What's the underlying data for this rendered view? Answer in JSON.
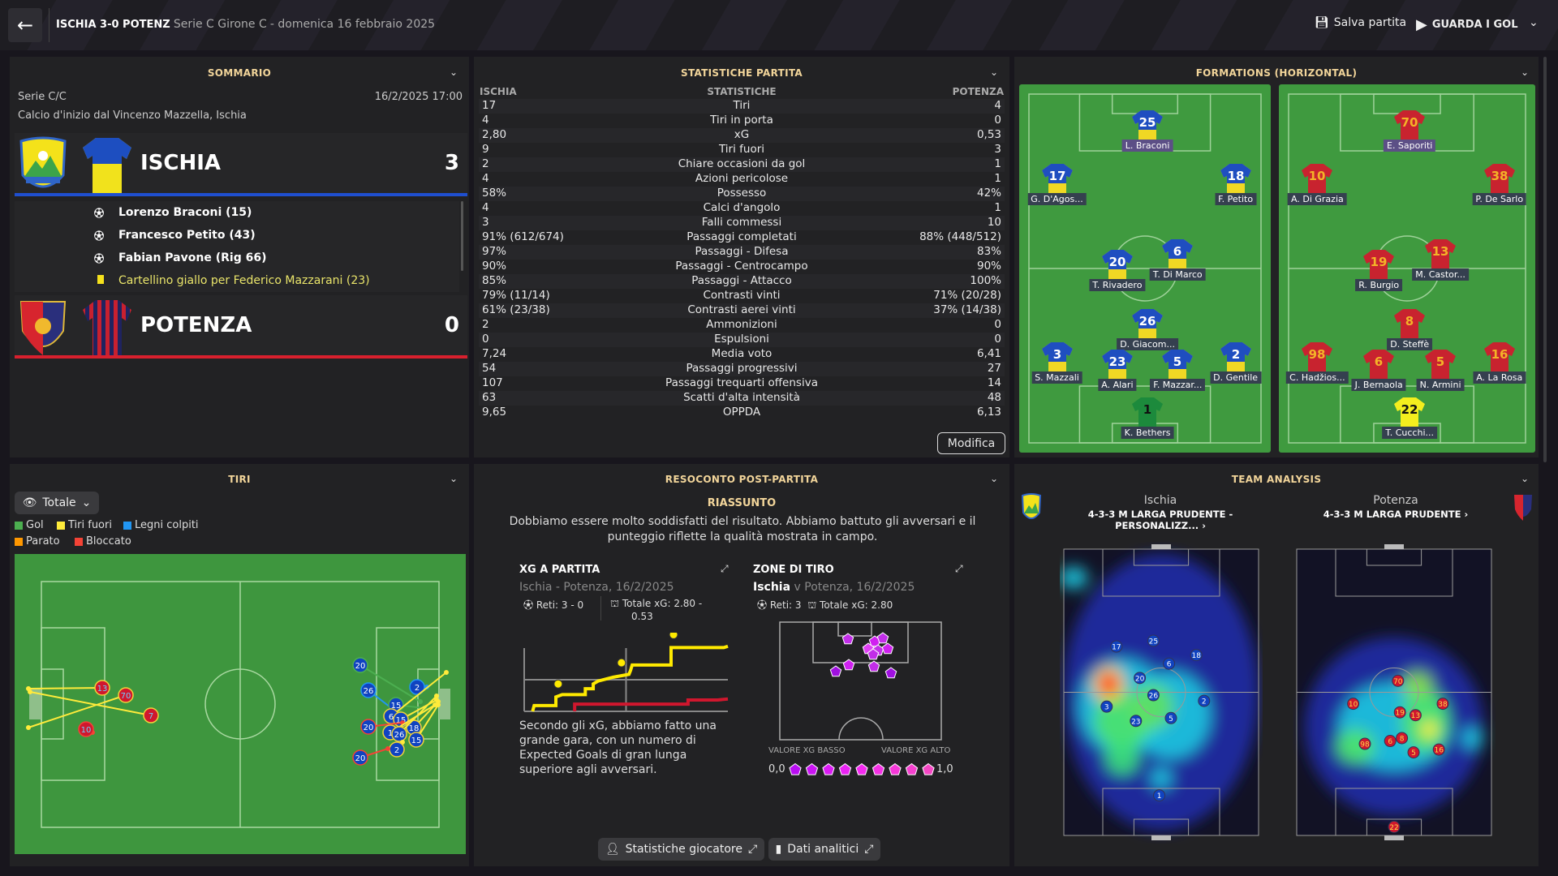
{
  "topbar": {
    "match": "ISCHIA 3-0 POTENZ",
    "competition": "Serie C Girone C",
    "date": "- domenica 16 febbraio 2025",
    "save": "Salva partita",
    "watch": "GUARDA I GOL"
  },
  "summary": {
    "title": "SOMMARIO",
    "league": "Serie C/C",
    "datetime": "16/2/2025 17:00",
    "kickoff": "Calcio d'inizio dal Vincenzo Mazzella, Ischia",
    "home": {
      "name": "ISCHIA",
      "score": "3",
      "color": "#1f4fd0"
    },
    "away": {
      "name": "POTENZA",
      "score": "0",
      "color": "#d8202e"
    },
    "events": [
      {
        "icon": "ball",
        "text": "Lorenzo Braconi (15)"
      },
      {
        "icon": "ball",
        "text": "Francesco Petito (43)"
      },
      {
        "icon": "ball",
        "text": "Fabian Pavone (Rig 66)"
      },
      {
        "icon": "yellow-card",
        "text": "Cartellino giallo per Federico Mazzarani (23)"
      }
    ]
  },
  "stats": {
    "title": "STATISTICHE PARTITA",
    "head": [
      "ISCHIA",
      "STATISTICHE",
      "POTENZA"
    ],
    "edit": "Modifica",
    "rows": [
      [
        "17",
        "Tiri",
        "4"
      ],
      [
        "4",
        "Tiri in porta",
        "0"
      ],
      [
        "2,80",
        "xG",
        "0,53"
      ],
      [
        "9",
        "Tiri fuori",
        "3"
      ],
      [
        "2",
        "Chiare occasioni da gol",
        "1"
      ],
      [
        "4",
        "Azioni pericolose",
        "1"
      ],
      [
        "58%",
        "Possesso",
        "42%"
      ],
      [
        "4",
        "Calci d'angolo",
        "1"
      ],
      [
        "3",
        "Falli commessi",
        "10"
      ],
      [
        "91% (612/674)",
        "Passaggi completati",
        "88% (448/512)"
      ],
      [
        "97%",
        "Passaggi - Difesa",
        "83%"
      ],
      [
        "90%",
        "Passaggi - Centrocampo",
        "90%"
      ],
      [
        "85%",
        "Passaggi - Attacco",
        "100%"
      ],
      [
        "79% (11/14)",
        "Contrasti vinti",
        "71% (20/28)"
      ],
      [
        "61% (23/38)",
        "Contrasti aerei vinti",
        "37% (14/38)"
      ],
      [
        "2",
        "Ammonizioni",
        "0"
      ],
      [
        "0",
        "Espulsioni",
        "0"
      ],
      [
        "7,24",
        "Media voto",
        "6,41"
      ],
      [
        "54",
        "Passaggi progressivi",
        "27"
      ],
      [
        "107",
        "Passaggi trequarti offensiva",
        "14"
      ],
      [
        "63",
        "Scatti d'alta intensità",
        "48"
      ],
      [
        "9,65",
        "OPPDA",
        "6,13"
      ]
    ]
  },
  "formations": {
    "title": "FORMATIONS (HORIZONTAL)",
    "home": [
      [
        "25",
        "L. Braconi"
      ],
      [
        "17",
        "G. D'Agos..."
      ],
      [
        "18",
        "F. Petito"
      ],
      [
        "20",
        "T. Rivadero"
      ],
      [
        "6",
        "T. Di Marco"
      ],
      [
        "26",
        "D. Giacom..."
      ],
      [
        "3",
        "S. Mazzali"
      ],
      [
        "23",
        "A. Alari"
      ],
      [
        "5",
        "F. Mazzar..."
      ],
      [
        "2",
        "D. Gentile"
      ],
      [
        "1",
        "K. Bethers"
      ]
    ],
    "away": [
      [
        "70",
        "E. Saporiti"
      ],
      [
        "10",
        "A. Di Grazia"
      ],
      [
        "38",
        "P. De Sarlo"
      ],
      [
        "19",
        "R. Burgio"
      ],
      [
        "13",
        "M. Castor..."
      ],
      [
        "8",
        "D. Steffè"
      ],
      [
        "98",
        "C. Hadžios..."
      ],
      [
        "6",
        "J. Bernaola"
      ],
      [
        "5",
        "N. Armini"
      ],
      [
        "16",
        "A. La Rosa"
      ],
      [
        "22",
        "T. Cucchi..."
      ]
    ]
  },
  "shots": {
    "title": "TIRI",
    "filter": "Totale",
    "legend": [
      {
        "label": "Gol",
        "color": "#4caf50"
      },
      {
        "label": "Tiri fuori",
        "color": "#ffeb3b"
      },
      {
        "label": "Legni colpiti",
        "color": "#2196f3"
      },
      {
        "label": "Parato",
        "color": "#ff9800"
      },
      {
        "label": "Bloccato",
        "color": "#f44336"
      }
    ],
    "away": [
      {
        "n": "13",
        "o": "off"
      },
      {
        "n": "70",
        "o": "off"
      },
      {
        "n": "7",
        "o": "off"
      },
      {
        "n": "10",
        "o": "blocked"
      }
    ],
    "home": [
      {
        "n": "20",
        "o": "goal"
      },
      {
        "n": "26",
        "o": "post"
      },
      {
        "n": "2",
        "o": "post"
      },
      {
        "n": "15",
        "o": "goal"
      },
      {
        "n": "6",
        "o": "off"
      },
      {
        "n": "15",
        "o": "off"
      },
      {
        "n": "20",
        "o": "blocked"
      },
      {
        "n": "18",
        "o": "off"
      },
      {
        "n": "1",
        "o": "off"
      },
      {
        "n": "26",
        "o": "off"
      },
      {
        "n": "15",
        "o": "off"
      },
      {
        "n": "2",
        "o": "off"
      },
      {
        "n": "20",
        "o": "blocked"
      }
    ]
  },
  "report": {
    "title": "RESOCONTO POST-PARTITA",
    "summary_title": "RIASSUNTO",
    "summary": "Dobbiamo essere molto soddisfatti del risultato. Abbiamo battuto gli avversari e il punteggio riflette la qualità mostrata in campo.",
    "xg": {
      "title": "XG A PARTITA",
      "sub": "Ischia - Potenza, 16/2/2025",
      "goals": "Reti: 3 - 0",
      "total": "Totale xG: 2.80 - 0.53",
      "caption": "Secondo gli xG, abbiamo fatto una grande gara, con un numero di Expected Goals di gran lunga superiore agli avversari."
    },
    "zones": {
      "title": "ZONE DI TIRO",
      "team": "Ischia",
      "sub": " v Potenza, 16/2/2025",
      "goals": "Reti: 3",
      "total": "Totale xG: 2.80",
      "low": "VALORE XG BASSO",
      "high": "VALORE XG ALTO",
      "min": "0,0",
      "max": "1,0"
    },
    "buttons": {
      "players": "Statistiche giocatore",
      "analytics": "Dati analitici"
    }
  },
  "chart_data": {
    "type": "line",
    "title": "XG A PARTITA",
    "xlim": [
      0,
      90
    ],
    "ylim": [
      0,
      2.72
    ],
    "grid": true,
    "series": [
      {
        "name": "Ischia",
        "color": "#ffea00",
        "points": [
          [
            3.7,
            0
          ],
          [
            4.4,
            0.25
          ],
          [
            14,
            0.25
          ],
          [
            14,
            0.62
          ],
          [
            16.8,
            0.72
          ],
          [
            27,
            0.72
          ],
          [
            27,
            0.97
          ],
          [
            30.5,
            0.97
          ],
          [
            30.5,
            1.18
          ],
          [
            32.6,
            1.3
          ],
          [
            39.4,
            1.47
          ],
          [
            42.9,
            1.53
          ],
          [
            46.3,
            1.59
          ],
          [
            47,
            1.76
          ],
          [
            47.7,
            1.99
          ],
          [
            64.9,
            1.99
          ],
          [
            64.9,
            2.74
          ],
          [
            88.2,
            2.74
          ],
          [
            90,
            2.8
          ]
        ],
        "goals": [
          15,
          43,
          66
        ]
      },
      {
        "name": "Potenza",
        "color": "#d0172e",
        "points": [
          [
            22.3,
            0
          ],
          [
            22.3,
            0.31
          ],
          [
            72.4,
            0.31
          ],
          [
            72.4,
            0.49
          ],
          [
            85.5,
            0.49
          ],
          [
            90,
            0.53
          ]
        ],
        "goals": []
      }
    ]
  },
  "analysis": {
    "title": "TEAM ANALYSIS",
    "home": {
      "name": "Ischia",
      "tactic": "4-3-3 M LARGA PRUDENTE - PERSONALIZZ..."
    },
    "away": {
      "name": "Potenza",
      "tactic": "4-3-3 M LARGA PRUDENTE"
    },
    "home_players": [
      "17",
      "25",
      "18",
      "6",
      "20",
      "26",
      "2",
      "3",
      "23",
      "5",
      "1"
    ],
    "away_players": [
      "70",
      "10",
      "19",
      "13",
      "38",
      "98",
      "6",
      "8",
      "5",
      "16",
      "22"
    ]
  }
}
